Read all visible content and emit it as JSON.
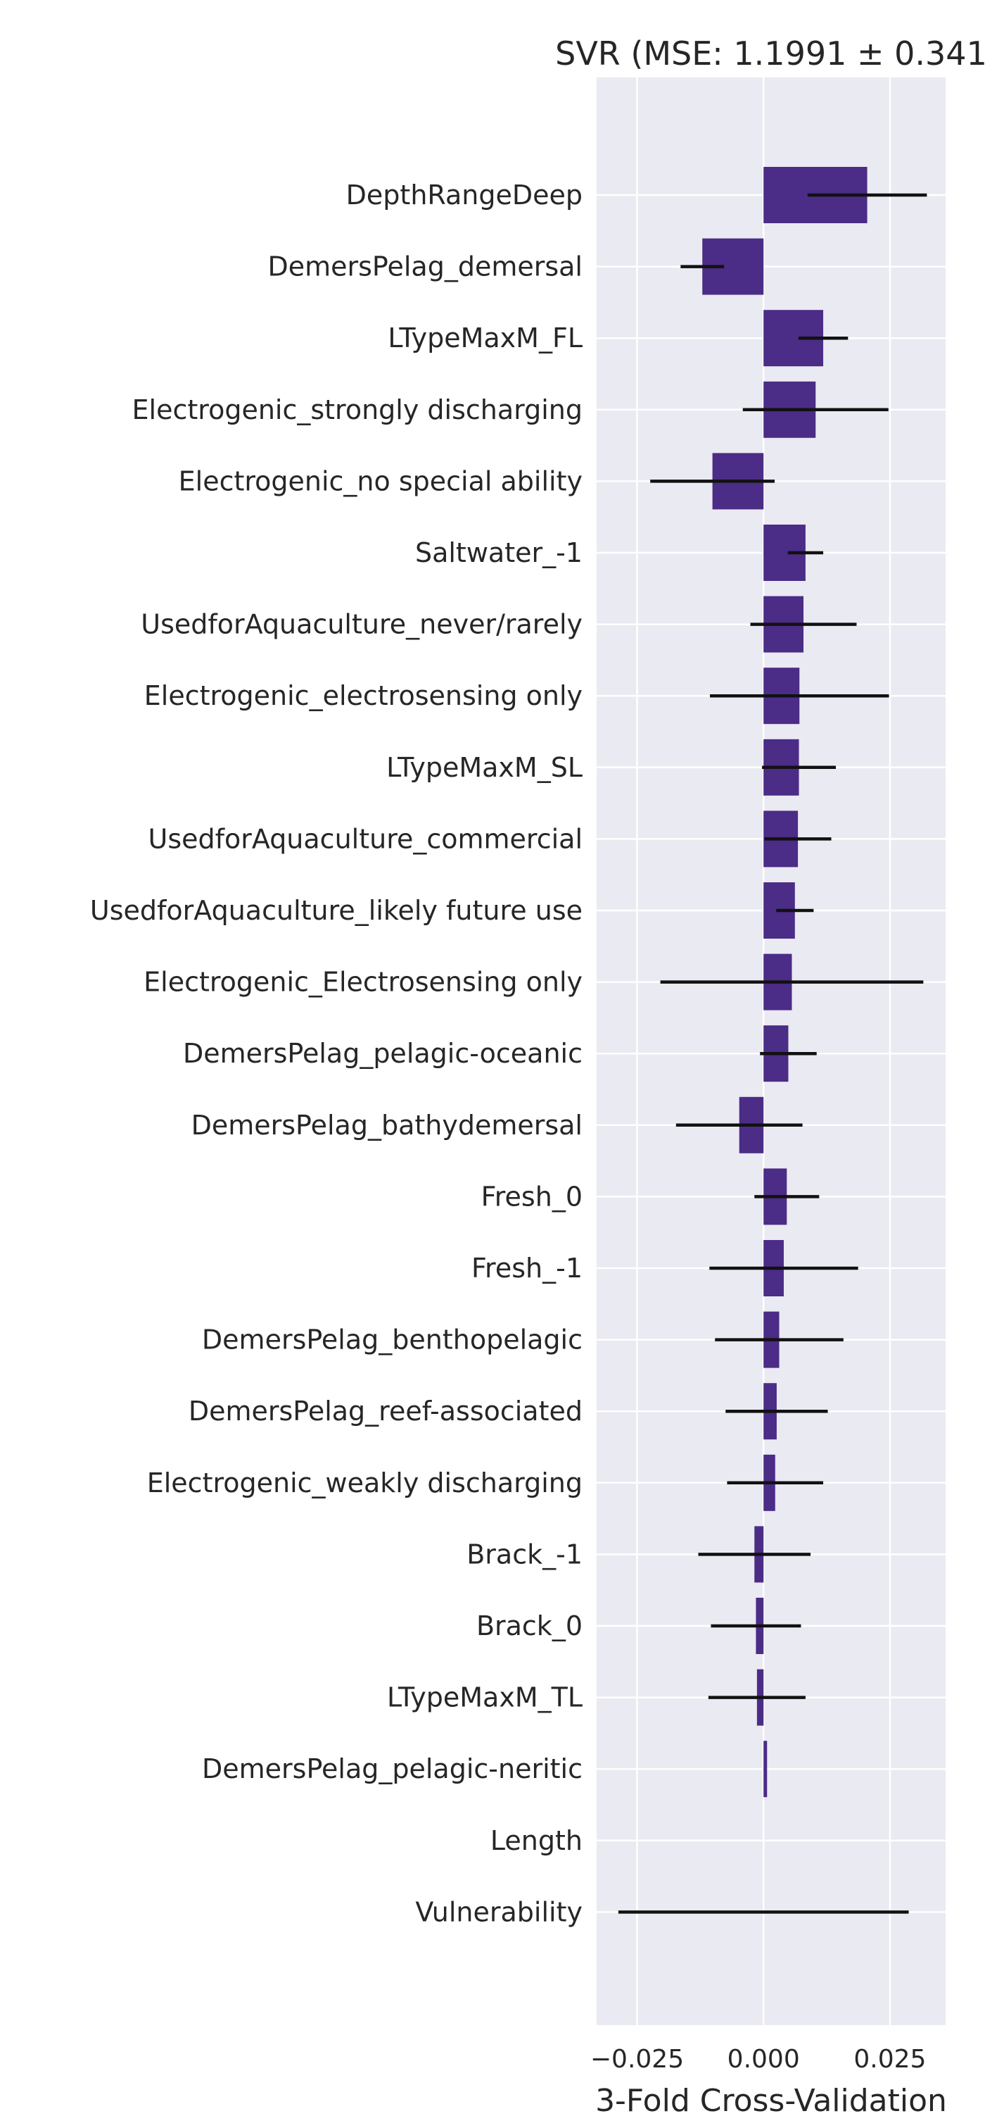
{
  "chart_data": {
    "type": "bar",
    "orientation": "horizontal",
    "title": "SVR (MSE: 1.1991 ± 0.341",
    "xlabel": "3-Fold Cross-Validation",
    "ylabel": "",
    "xlim": [
      -0.033,
      0.036
    ],
    "xticks": [
      -0.025,
      0.0,
      0.025
    ],
    "xtick_labels": [
      "−0.025",
      "0.000",
      "0.025"
    ],
    "grid": true,
    "bar_color": "#4b2c86",
    "background_color": "#eaeaf2",
    "categories": [
      "DepthRangeDeep",
      "DemersPelag_demersal",
      "LTypeMaxM_FL",
      "Electrogenic_strongly discharging",
      "Electrogenic_no special ability",
      "Saltwater_-1",
      "UsedforAquaculture_never/rarely",
      "Electrogenic_electrosensing only",
      "LTypeMaxM_SL",
      "UsedforAquaculture_commercial",
      "UsedforAquaculture_likely future use",
      "Electrogenic_Electrosensing only",
      "DemersPelag_pelagic-oceanic",
      "DemersPelag_bathydemersal",
      "Fresh_0",
      "Fresh_-1",
      "DemersPelag_benthopelagic",
      "DemersPelag_reef-associated",
      "Electrogenic_weakly discharging",
      "Brack_-1",
      "Brack_0",
      "LTypeMaxM_TL",
      "DemersPelag_pelagic-neritic",
      "Length",
      "Vulnerability"
    ],
    "values": [
      0.0205,
      -0.0121,
      0.0118,
      0.0103,
      -0.0101,
      0.0083,
      0.0079,
      0.0071,
      0.007,
      0.0068,
      0.0062,
      0.0056,
      0.0049,
      -0.0048,
      0.0046,
      0.004,
      0.0031,
      0.0026,
      0.0023,
      -0.0018,
      -0.0015,
      -0.0013,
      0.0007,
      0.0,
      0.0
    ],
    "errors": [
      0.0118,
      0.0043,
      0.0049,
      0.0144,
      0.0123,
      0.0035,
      0.0105,
      0.0177,
      0.0073,
      0.0066,
      0.0037,
      0.026,
      0.0056,
      0.0125,
      0.0064,
      0.0147,
      0.0127,
      0.0101,
      0.0095,
      0.0111,
      0.0089,
      0.0096,
      0.0,
      0.0,
      0.0287
    ]
  }
}
